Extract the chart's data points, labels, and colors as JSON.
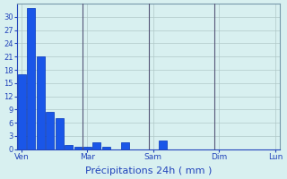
{
  "title": "Précipitations 24h ( mm )",
  "bar_color": "#1a56e8",
  "bar_edge_color": "#0033bb",
  "background_color": "#d8f0f0",
  "grid_color": "#b0c8c8",
  "axis_label_color": "#2244bb",
  "tick_color": "#2244bb",
  "ylim": [
    0,
    33
  ],
  "yticks": [
    0,
    3,
    6,
    9,
    12,
    15,
    18,
    21,
    24,
    27,
    30
  ],
  "bar_values": [
    17,
    32,
    21,
    8.5,
    7,
    1,
    0.5,
    0.5,
    1.5,
    0.5,
    0,
    1.5,
    0,
    0,
    0,
    2,
    0,
    0,
    0,
    0,
    0,
    0,
    0,
    0,
    0,
    0,
    0,
    0
  ],
  "x_positions": [
    0,
    1,
    2,
    3,
    4,
    5,
    6,
    7,
    8,
    9,
    10,
    11,
    12,
    13,
    14,
    15,
    16,
    17,
    18,
    19,
    20,
    21,
    22,
    23,
    24,
    25,
    26,
    27
  ],
  "day_ticks": [
    0,
    7,
    14,
    21,
    27
  ],
  "day_labels": [
    "Ven",
    "Mar",
    "Sam",
    "Dim",
    "Lun"
  ],
  "vline_positions": [
    7,
    14,
    21
  ],
  "xlabel": "Précipitations 24h ( mm )"
}
